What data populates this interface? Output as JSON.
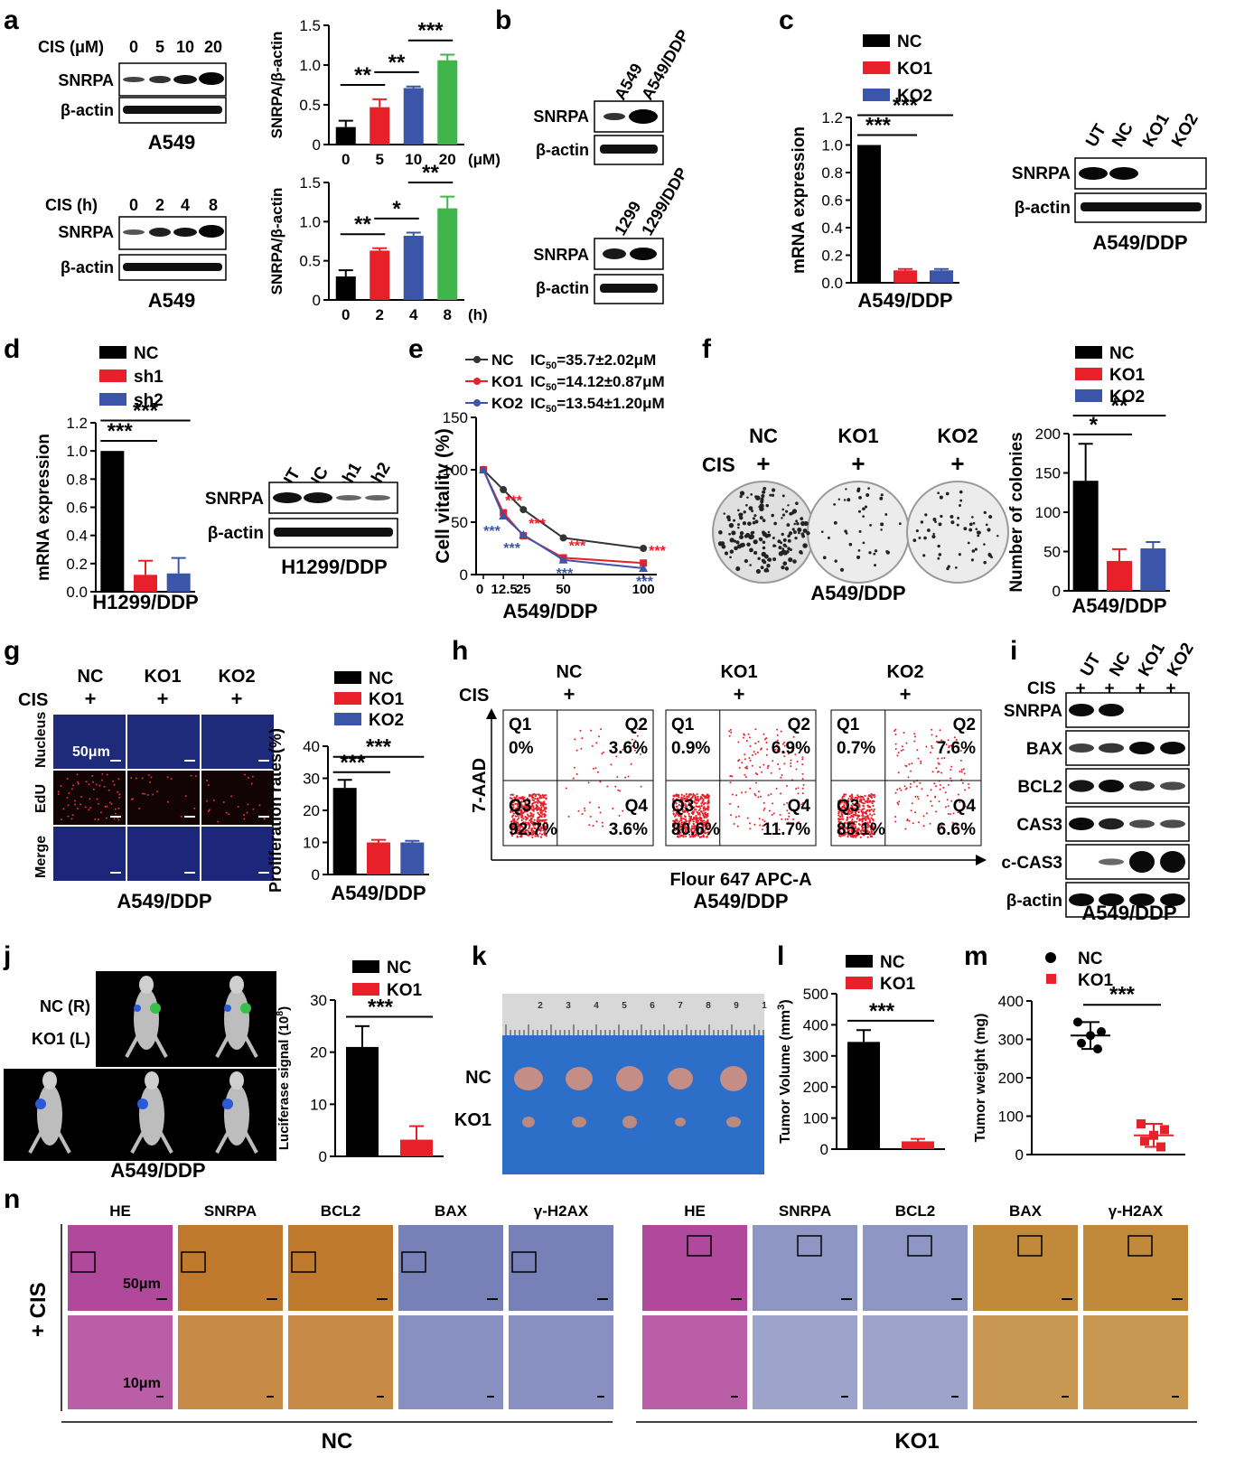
{
  "panels": {
    "a": "a",
    "b": "b",
    "c": "c",
    "d": "d",
    "e": "e",
    "f": "f",
    "g": "g",
    "h": "h",
    "i": "i",
    "j": "j",
    "k": "k",
    "l": "l",
    "m": "m",
    "n": "n"
  },
  "blot_labels": {
    "snrpa": "SNRPA",
    "bactin": "β-actin",
    "bax": "BAX",
    "bcl2": "BCL2",
    "cas3": "CAS3",
    "ccas3": "c-CAS3",
    "cis": "CIS",
    "plus": "+"
  },
  "panel_a": {
    "top_header": "CIS  (μM)",
    "top_lanes": [
      "0",
      "5",
      "10",
      "20"
    ],
    "top_cell": "A549",
    "bottom_header": "CIS (h)",
    "bottom_lanes": [
      "0",
      "2",
      "4",
      "8"
    ],
    "bottom_cell": "A549"
  },
  "panel_b": {
    "top_lanes": [
      "A549",
      "A549/DDP"
    ],
    "bottom_lanes": [
      "1299",
      "1299/DDP"
    ]
  },
  "panel_c": {
    "lanes": [
      "UT",
      "NC",
      "KO1",
      "KO2"
    ],
    "cell": "A549/DDP"
  },
  "panel_d": {
    "lanes": [
      "UT",
      "NC",
      "sh1",
      "sh2"
    ],
    "cell": "H1299/DDP"
  },
  "panel_f": {
    "groups": [
      "NC",
      "KO1",
      "KO2"
    ],
    "cis": "CIS",
    "cell": "A549/DDP"
  },
  "panel_g": {
    "groups": [
      "NC",
      "KO1",
      "KO2"
    ],
    "rows": [
      "Nucleus",
      "EdU",
      "Merge"
    ],
    "scale": "50μm",
    "cis": "CIS",
    "cell": "A549/DDP"
  },
  "panel_h": {
    "groups": [
      "NC",
      "KO1",
      "KO2"
    ],
    "cis": "CIS",
    "quadrants": [
      {
        "Q1": "0%",
        "Q2": "3.6%",
        "Q3": "92.7%",
        "Q4": "3.6%"
      },
      {
        "Q1": "0.9%",
        "Q2": "6.9%",
        "Q3": "80.6%",
        "Q4": "11.7%"
      },
      {
        "Q1": "0.7%",
        "Q2": "7.6%",
        "Q3": "85.1%",
        "Q4": "6.6%"
      }
    ],
    "q_names": [
      "Q1",
      "Q2",
      "Q3",
      "Q4"
    ],
    "ylabel": "7-AAD",
    "xlabel": "Flour 647 APC-A",
    "cell": "A549/DDP"
  },
  "panel_i": {
    "lanes": [
      "UT",
      "NC",
      "KO1",
      "KO2"
    ],
    "cell": "A549/DDP"
  },
  "panel_j": {
    "labels": [
      "NC (R)",
      "KO1 (L)"
    ],
    "cell": "A549/DDP"
  },
  "panel_k": {
    "rows": [
      "NC",
      "KO1"
    ],
    "ruler": [
      "2",
      "3",
      "4",
      "5",
      "6",
      "7",
      "8",
      "9",
      "1"
    ]
  },
  "panel_n": {
    "stains": [
      "HE",
      "SNRPA",
      "BCL2",
      "BAX",
      "γ-H2AX"
    ],
    "side": "+ CIS",
    "scale_top": "50μm",
    "scale_bottom": "10μm",
    "groups": [
      "NC",
      "KO1"
    ],
    "colors_nc": [
      "#b0489c",
      "#c07a2e",
      "#c07a2e",
      "#7880b8",
      "#7880b8"
    ],
    "colors_ko": [
      "#b0489c",
      "#8e97c4",
      "#8e97c4",
      "#c08a3a",
      "#c08a3a"
    ]
  },
  "chart_data": [
    {
      "id": "a-top",
      "type": "bar",
      "categories": [
        "0",
        "5",
        "10",
        "20"
      ],
      "x_unit": "(μM)",
      "values": [
        0.22,
        0.47,
        0.71,
        1.06
      ],
      "errors": [
        0.08,
        0.1,
        0.02,
        0.07
      ],
      "colors": [
        "#000000",
        "#e8202a",
        "#3b56a8",
        "#3fb54a"
      ],
      "ylabel": "SNRPA/β-actin",
      "ylim": [
        0,
        1.5
      ],
      "yticks": [
        0,
        0.5,
        1.0,
        1.5
      ],
      "yticklabels": [
        "0",
        "0.5",
        "1.0",
        "1.5"
      ],
      "significance": [
        {
          "from": 0,
          "to": 1,
          "label": "**"
        },
        {
          "from": 1,
          "to": 2,
          "label": "**"
        },
        {
          "from": 2,
          "to": 3,
          "label": "***"
        }
      ]
    },
    {
      "id": "a-bottom",
      "type": "bar",
      "categories": [
        "0",
        "2",
        "4",
        "8"
      ],
      "x_unit": "(h)",
      "values": [
        0.3,
        0.63,
        0.82,
        1.17
      ],
      "errors": [
        0.08,
        0.03,
        0.04,
        0.15
      ],
      "colors": [
        "#000000",
        "#e8202a",
        "#3b56a8",
        "#3fb54a"
      ],
      "ylabel": "SNRPA/β-actin",
      "ylim": [
        0,
        1.5
      ],
      "yticks": [
        0,
        0.5,
        1.0,
        1.5
      ],
      "yticklabels": [
        "0",
        "0.5",
        "1.0",
        "1.5"
      ],
      "significance": [
        {
          "from": 0,
          "to": 1,
          "label": "**"
        },
        {
          "from": 1,
          "to": 2,
          "label": "*"
        },
        {
          "from": 2,
          "to": 3,
          "label": "**"
        }
      ]
    },
    {
      "id": "c",
      "type": "bar",
      "categories": [
        "NC",
        "KO1",
        "KO2"
      ],
      "legend": [
        "NC",
        "KO1",
        "KO2"
      ],
      "values": [
        1.0,
        0.09,
        0.09
      ],
      "errors": [
        0,
        0.01,
        0.01
      ],
      "colors": [
        "#000000",
        "#e8202a",
        "#3b56a8"
      ],
      "ylabel": "mRNA expression",
      "xlabel": "A549/DDP",
      "ylim": [
        0,
        1.2
      ],
      "yticks": [
        0,
        0.2,
        0.4,
        0.6,
        0.8,
        1.0,
        1.2
      ],
      "yticklabels": [
        "0.0",
        "0.2",
        "0.4",
        "0.6",
        "0.8",
        "1.0",
        "1.2"
      ],
      "significance": [
        {
          "from": 0,
          "to": 1,
          "label": "***"
        },
        {
          "from": 0,
          "to": 2,
          "label": "***"
        }
      ]
    },
    {
      "id": "d",
      "type": "bar",
      "categories": [
        "NC",
        "sh1",
        "sh2"
      ],
      "legend": [
        "NC",
        "sh1",
        "sh2"
      ],
      "values": [
        1.0,
        0.12,
        0.13
      ],
      "errors": [
        0,
        0.1,
        0.11
      ],
      "colors": [
        "#000000",
        "#e8202a",
        "#3b56a8"
      ],
      "ylabel": "mRNA expression",
      "xlabel": "H1299/DDP",
      "ylim": [
        0,
        1.2
      ],
      "yticks": [
        0,
        0.2,
        0.4,
        0.6,
        0.8,
        1.0,
        1.2
      ],
      "yticklabels": [
        "0.0",
        "0.2",
        "0.4",
        "0.6",
        "0.8",
        "1.0",
        "1.2"
      ],
      "significance": [
        {
          "from": 0,
          "to": 1,
          "label": "***"
        },
        {
          "from": 0,
          "to": 2,
          "label": "***"
        }
      ]
    },
    {
      "id": "e",
      "type": "line",
      "x": [
        0,
        12.5,
        25,
        50,
        100
      ],
      "xticklabels": [
        "0",
        "12.5",
        "25",
        "50",
        "100"
      ],
      "series": [
        {
          "name": "NC",
          "ic50": "IC",
          "ic_sub": "50",
          "ic_val": "=35.7±2.02μM",
          "color": "#333333",
          "values": [
            100,
            81,
            62,
            35,
            25
          ]
        },
        {
          "name": "KO1",
          "ic50": "IC",
          "ic_sub": "50",
          "ic_val": "=14.12±0.87μM",
          "color": "#e8202a",
          "values": [
            100,
            59,
            37,
            16,
            11
          ]
        },
        {
          "name": "KO2",
          "ic50": "IC",
          "ic_sub": "50",
          "ic_val": "=13.54±1.20μM",
          "color": "#3b56a8",
          "values": [
            100,
            56,
            38,
            14,
            6
          ]
        }
      ],
      "ylabel": "Cell vitality (%)",
      "xlabel": "A549/DDP",
      "ylim": [
        0,
        150
      ],
      "yticks": [
        0,
        50,
        100,
        150
      ],
      "yticklabels": [
        "0",
        "50",
        "100",
        "150"
      ],
      "stars_red": "***",
      "stars_blue": "***"
    },
    {
      "id": "f",
      "type": "bar",
      "categories": [
        "NC",
        "KO1",
        "KO2"
      ],
      "legend": [
        "NC",
        "KO1",
        "KO2"
      ],
      "values": [
        140,
        38,
        54
      ],
      "errors": [
        47,
        15,
        8
      ],
      "colors": [
        "#000000",
        "#e8202a",
        "#3b56a8"
      ],
      "ylabel": "Number of colonies",
      "xlabel": "A549/DDP",
      "ylim": [
        0,
        200
      ],
      "yticks": [
        0,
        50,
        100,
        150,
        200
      ],
      "yticklabels": [
        "0",
        "50",
        "100",
        "150",
        "200"
      ],
      "significance": [
        {
          "from": 0,
          "to": 1,
          "label": "*"
        },
        {
          "from": 0,
          "to": 2,
          "label": "**"
        }
      ]
    },
    {
      "id": "g",
      "type": "bar",
      "categories": [
        "NC",
        "KO1",
        "KO2"
      ],
      "legend": [
        "NC",
        "KO1",
        "KO2"
      ],
      "values": [
        27,
        10,
        10
      ],
      "errors": [
        2.5,
        0.8,
        0.5
      ],
      "colors": [
        "#000000",
        "#e8202a",
        "#3b56a8"
      ],
      "ylabel": "Proliferation rates(%)",
      "xlabel": "A549/DDP",
      "ylim": [
        0,
        40
      ],
      "yticks": [
        0,
        10,
        20,
        30,
        40
      ],
      "yticklabels": [
        "0",
        "10",
        "20",
        "30",
        "40"
      ],
      "significance": [
        {
          "from": 0,
          "to": 1,
          "label": "***"
        },
        {
          "from": 0,
          "to": 2,
          "label": "***"
        }
      ]
    },
    {
      "id": "j",
      "type": "bar",
      "categories": [
        "NC",
        "KO1"
      ],
      "legend": [
        "NC",
        "KO1"
      ],
      "values": [
        21,
        3.2
      ],
      "errors": [
        4,
        2.6
      ],
      "colors": [
        "#000000",
        "#e8202a"
      ],
      "ylabel": "Luciferase signal (10",
      "ylabel_sup": "8",
      "ylabel_end": ")",
      "ylim": [
        0,
        30
      ],
      "yticks": [
        0,
        10,
        20,
        30
      ],
      "yticklabels": [
        "0",
        "10",
        "20",
        "30"
      ],
      "significance": [
        {
          "from": 0,
          "to": 1,
          "label": "***"
        }
      ]
    },
    {
      "id": "l",
      "type": "bar",
      "categories": [
        "NC",
        "KO1"
      ],
      "legend": [
        "NC",
        "KO1"
      ],
      "values": [
        345,
        25
      ],
      "errors": [
        38,
        8
      ],
      "colors": [
        "#000000",
        "#e8202a"
      ],
      "ylabel": "Tumor Volume (mm",
      "ylabel_sup": "3",
      "ylabel_end": ")",
      "ylim": [
        0,
        500
      ],
      "yticks": [
        0,
        100,
        200,
        300,
        400,
        500
      ],
      "yticklabels": [
        "0",
        "100",
        "200",
        "300",
        "400",
        "500"
      ],
      "significance": [
        {
          "from": 0,
          "to": 1,
          "label": "***"
        }
      ]
    },
    {
      "id": "m",
      "type": "scatter",
      "categories": [
        "NC",
        "KO1"
      ],
      "legend": [
        "NC",
        "KO1"
      ],
      "series": [
        {
          "name": "NC",
          "color": "#000000",
          "values": [
            345,
            320,
            310,
            290,
            275
          ],
          "mean": 310,
          "sd": 35
        },
        {
          "name": "KO1",
          "color": "#e8202a",
          "values": [
            80,
            65,
            50,
            35,
            20
          ],
          "mean": 50,
          "sd": 30
        }
      ],
      "ylabel": "Tumor weight (mg)",
      "ylim": [
        0,
        400
      ],
      "yticks": [
        0,
        100,
        200,
        300,
        400
      ],
      "yticklabels": [
        "0",
        "100",
        "200",
        "300",
        "400"
      ],
      "significance": [
        {
          "from": 0,
          "to": 1,
          "label": "***"
        }
      ]
    }
  ]
}
